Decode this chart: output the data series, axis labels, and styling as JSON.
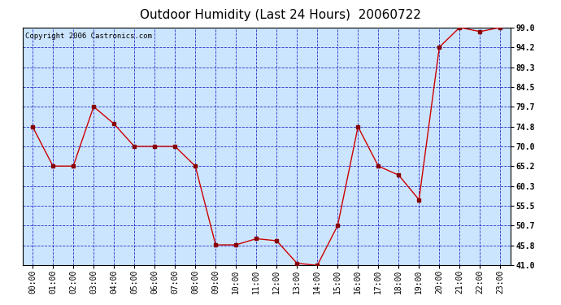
{
  "title": "Outdoor Humidity (Last 24 Hours)  20060722",
  "copyright": "Copyright 2006 Castronics.com",
  "x_labels": [
    "00:00",
    "01:00",
    "02:00",
    "03:00",
    "04:00",
    "05:00",
    "06:00",
    "07:00",
    "08:00",
    "09:00",
    "10:00",
    "11:00",
    "12:00",
    "13:00",
    "14:00",
    "15:00",
    "16:00",
    "17:00",
    "18:00",
    "19:00",
    "20:00",
    "21:00",
    "22:00",
    "23:00"
  ],
  "y_values": [
    74.8,
    65.2,
    65.2,
    79.7,
    75.5,
    70.0,
    70.0,
    70.0,
    65.2,
    46.0,
    46.0,
    47.5,
    47.0,
    41.5,
    41.0,
    50.7,
    74.8,
    65.2,
    63.0,
    57.0,
    94.2,
    99.0,
    98.0,
    99.0
  ],
  "y_ticks": [
    41.0,
    45.8,
    50.7,
    55.5,
    60.3,
    65.2,
    70.0,
    74.8,
    79.7,
    84.5,
    89.3,
    94.2,
    99.0
  ],
  "ylim": [
    41.0,
    99.0
  ],
  "line_color": "#cc0000",
  "marker_color": "#880000",
  "bg_color": "#cce5ff",
  "grid_color": "#0000bb",
  "border_color": "#000000",
  "title_fontsize": 11,
  "copyright_fontsize": 6.5,
  "tick_fontsize": 7,
  "ytick_fontsize": 7
}
